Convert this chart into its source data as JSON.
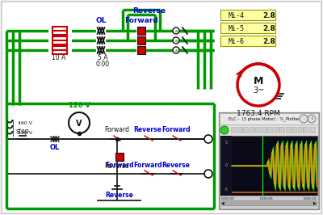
{
  "bg_color": "#f2f2f2",
  "border_color": "#aaaaaa",
  "green_wire_color": "#009900",
  "red_color": "#cc0000",
  "blue_label_color": "#0000cc",
  "black_color": "#111111",
  "circuit_bg": "#ffffff",
  "mi_labels": [
    "Mi-4",
    "Mi-5",
    "Mi-6"
  ],
  "mi_values": [
    "2.8",
    "2.8",
    "2.8"
  ],
  "rpm_value": "1763.4 RPM",
  "voltage_label": "120 V",
  "fuse_label_1": "10 A",
  "fuse_label_2": "5 A",
  "timer_label": "0:00"
}
